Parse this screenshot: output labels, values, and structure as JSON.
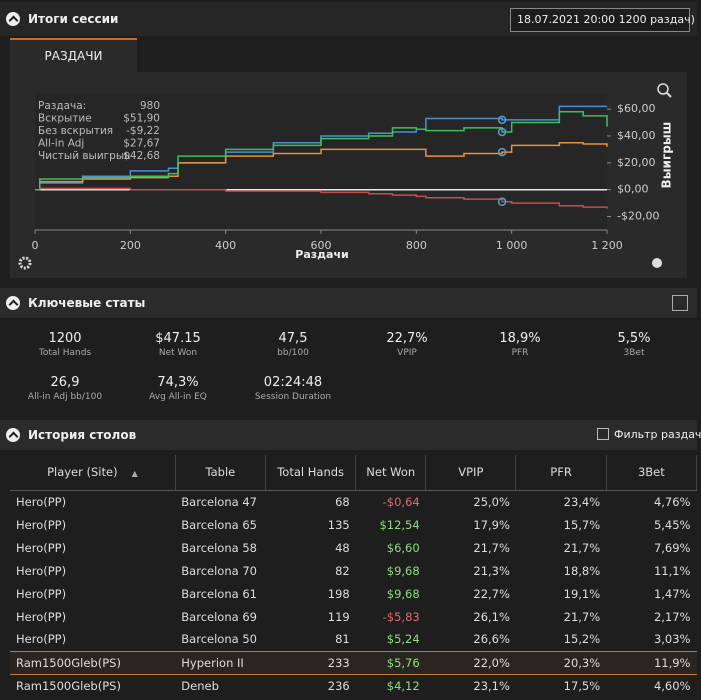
{
  "header": {
    "title": "Итоги сессии",
    "session_select": "18.07.2021 20:00 1200 раздач)"
  },
  "tab": "РАЗДАЧИ",
  "chart": {
    "type": "line",
    "xlabel": "Раздачи",
    "ylabel": "Выигрыш",
    "x": [
      0,
      10,
      100,
      200,
      280,
      300,
      400,
      500,
      600,
      700,
      750,
      800,
      820,
      900,
      980,
      1000,
      1100,
      1150,
      1200
    ],
    "series": [
      {
        "name": "Вскрытие",
        "color": "#4a90d9",
        "values": [
          0,
          5,
          10,
          14,
          16,
          20,
          28,
          35,
          40,
          42,
          43,
          45,
          53,
          53,
          52,
          52,
          62,
          62,
          62
        ]
      },
      {
        "name": "Без вскрытия",
        "color": "#c0504d",
        "values": [
          0,
          1,
          1,
          0,
          0,
          0,
          -1,
          -1,
          -2,
          -3,
          -4,
          -5,
          -6,
          -7,
          -9,
          -10,
          -12,
          -13,
          -14
        ]
      },
      {
        "name": "All-in Adj",
        "color": "#e8913a",
        "values": [
          0,
          6,
          8,
          9,
          10,
          20,
          25,
          27,
          30,
          30,
          30,
          30,
          25,
          27,
          28,
          33,
          35,
          34,
          32
        ]
      },
      {
        "name": "Чистый выигрыш",
        "color": "#3fbf5a",
        "values": [
          0,
          8,
          9,
          10,
          12,
          25,
          30,
          33,
          38,
          40,
          46,
          45,
          44,
          46,
          43,
          50,
          58,
          55,
          47
        ]
      }
    ],
    "cursor_index": 14,
    "legend": [
      {
        "label": "Раздача:",
        "value": "980"
      },
      {
        "label": "Вскрытие",
        "value": "$51,90"
      },
      {
        "label": "Без вскрытия",
        "value": "-$9,22"
      },
      {
        "label": "All-in Adj",
        "value": "$27,67"
      },
      {
        "label": "Чистый выигрыш",
        "value": "$42,68"
      }
    ],
    "xlim": [
      0,
      1200
    ],
    "ylim": [
      -30,
      72
    ],
    "xticks": [
      0,
      200,
      400,
      600,
      800,
      {
        "value": 1000,
        "label": "1 000"
      },
      {
        "value": 1200,
        "label": "1 200"
      }
    ],
    "yticks": [
      {
        "value": 60,
        "label": "$60,00"
      },
      {
        "value": 40,
        "label": "$40,00"
      },
      {
        "value": 20,
        "label": "$20,00"
      },
      {
        "value": 0,
        "label": "$0,00"
      },
      {
        "value": -20,
        "label": "-$20,00"
      }
    ]
  },
  "stats": {
    "title": "Ключевые статы",
    "items": [
      {
        "value": "1200",
        "label": "Total Hands"
      },
      {
        "value": "$47.15",
        "label": "Net Won"
      },
      {
        "value": "47,5",
        "label": "bb/100"
      },
      {
        "value": "22,7%",
        "label": "VPIP"
      },
      {
        "value": "18,9%",
        "label": "PFR"
      },
      {
        "value": "5,5%",
        "label": "3Bet"
      },
      {
        "value": "26,9",
        "label": "All-in Adj bb/100"
      },
      {
        "value": "74,3%",
        "label": "Avg All-in EQ"
      },
      {
        "value": "02:24:48",
        "label": "Session Duration"
      }
    ]
  },
  "history": {
    "title": "История столов",
    "filter": "Фильтр раздач",
    "columns": [
      "Player (Site)",
      "Table",
      "Total Hands",
      "Net Won",
      "VPIP",
      "PFR",
      "3Bet"
    ],
    "selected_row": 7,
    "rows": [
      [
        "Hero(PP)",
        "Barcelona 47",
        "68",
        "-$0,64",
        "25,0%",
        "23,4%",
        "4,76%"
      ],
      [
        "Hero(PP)",
        "Barcelona 65",
        "135",
        "$12,54",
        "17,9%",
        "15,7%",
        "5,45%"
      ],
      [
        "Hero(PP)",
        "Barcelona 58",
        "48",
        "$6,60",
        "21,7%",
        "21,7%",
        "7,69%"
      ],
      [
        "Hero(PP)",
        "Barcelona 70",
        "82",
        "$9,68",
        "21,3%",
        "18,8%",
        "11,1%"
      ],
      [
        "Hero(PP)",
        "Barcelona 61",
        "198",
        "$9,68",
        "22,7%",
        "19,1%",
        "1,47%"
      ],
      [
        "Hero(PP)",
        "Barcelona 69",
        "119",
        "-$5,83",
        "26,1%",
        "21,7%",
        "2,17%"
      ],
      [
        "Hero(PP)",
        "Barcelona 50",
        "81",
        "$5,24",
        "26,6%",
        "15,2%",
        "3,03%"
      ],
      [
        "Ram1500Gleb(PS)",
        "Hyperion II",
        "233",
        "$5,76",
        "22,0%",
        "20,3%",
        "11,9%"
      ],
      [
        "Ram1500Gleb(PS)",
        "Deneb",
        "236",
        "$4,12",
        "23,1%",
        "17,5%",
        "4,60%"
      ]
    ]
  }
}
